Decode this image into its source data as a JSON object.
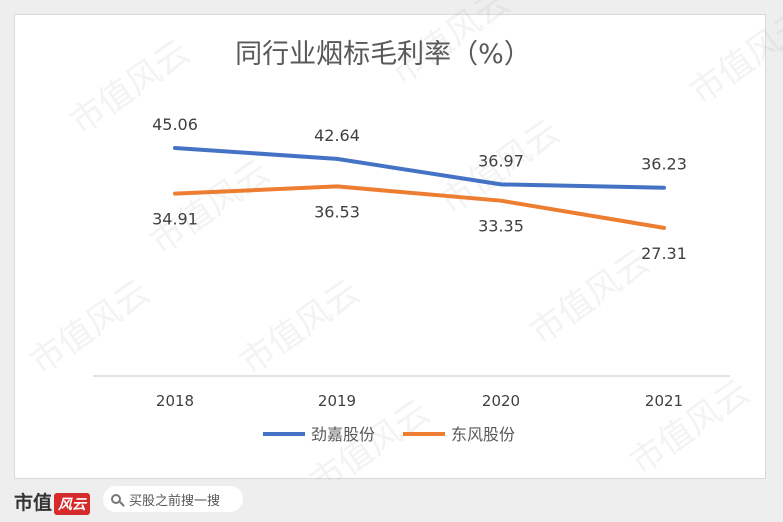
{
  "chart_data": {
    "type": "line",
    "title": "同行业烟标毛利率（%）",
    "categories": [
      "2018",
      "2019",
      "2020",
      "2021"
    ],
    "series": [
      {
        "name": "劲嘉股份",
        "values": [
          45.06,
          42.64,
          36.97,
          36.23
        ],
        "color": "#4472c4"
      },
      {
        "name": "东风股份",
        "values": [
          34.91,
          36.53,
          33.35,
          27.31
        ],
        "color": "#ed7d31"
      }
    ],
    "legend_position": "bottom",
    "grid": false
  },
  "watermark": "市值风云",
  "footer": {
    "brand": "市值",
    "brand_badge": "风云",
    "search_placeholder": "买股之前搜一搜",
    "search_icon": "search-icon"
  }
}
